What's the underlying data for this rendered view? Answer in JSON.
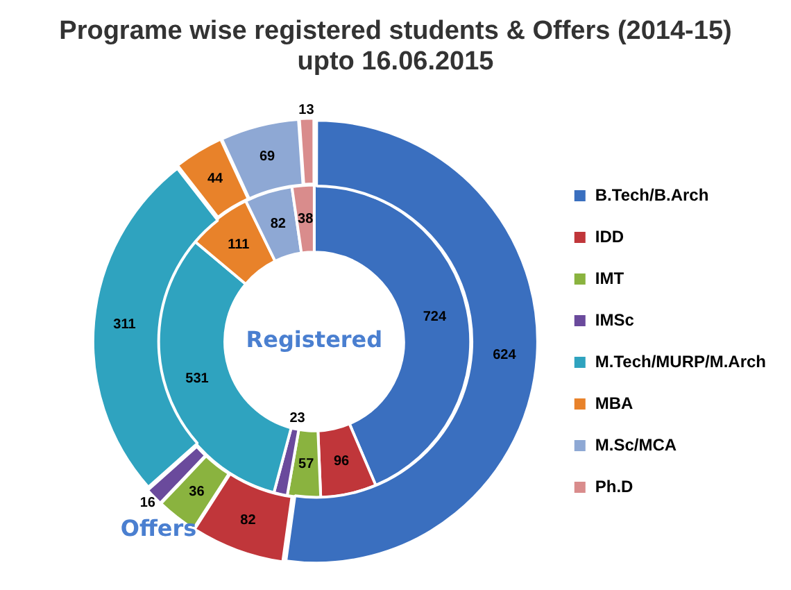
{
  "chart_data": {
    "type": "donut",
    "title": "Programe wise registered students & Offers (2014-15) upto 16.06.2015",
    "categories": [
      "B.Tech/B.Arch",
      "IDD",
      "IMT",
      "IMSc",
      "M.Tech/MURP/M.Arch",
      "MBA",
      "M.Sc/MCA",
      "Ph.D"
    ],
    "colors": [
      "#3a6fbf",
      "#c0363a",
      "#8ab33f",
      "#6a4a9c",
      "#2fa3bf",
      "#e8822a",
      "#8ea8d4",
      "#d98c8c"
    ],
    "series": [
      {
        "name": "Registered",
        "values": [
          724,
          96,
          57,
          23,
          531,
          111,
          82,
          38
        ]
      },
      {
        "name": "Offers",
        "values": [
          624,
          82,
          36,
          16,
          311,
          44,
          69,
          13
        ]
      }
    ],
    "data_labels": true,
    "legend": "right"
  }
}
